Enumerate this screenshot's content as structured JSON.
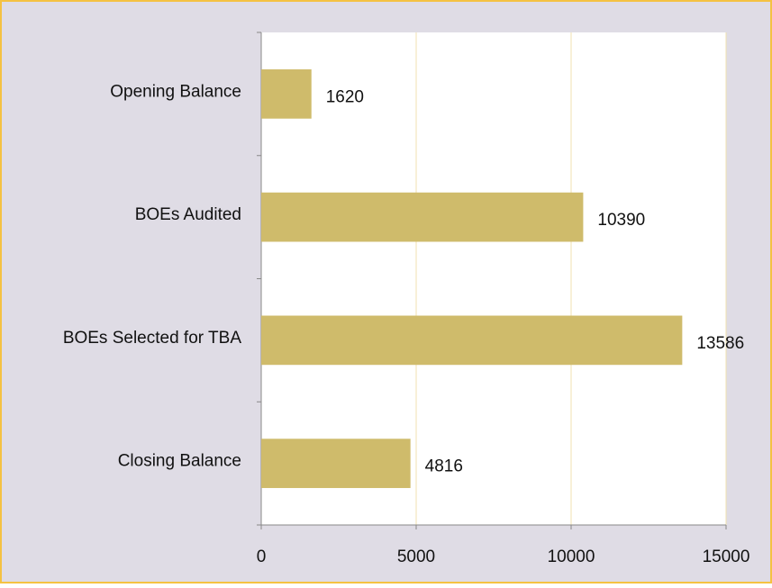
{
  "chart_data": {
    "type": "bar",
    "orientation": "horizontal",
    "categories": [
      "Opening Balance",
      "BOEs Audited",
      "BOEs Selected for TBA",
      "Closing Balance"
    ],
    "values": [
      1620,
      10390,
      13586,
      4816
    ],
    "color": "#cfbb6b",
    "xlim": [
      0,
      15000
    ],
    "xticks": [
      0,
      5000,
      10000,
      15000
    ],
    "grid": true
  }
}
